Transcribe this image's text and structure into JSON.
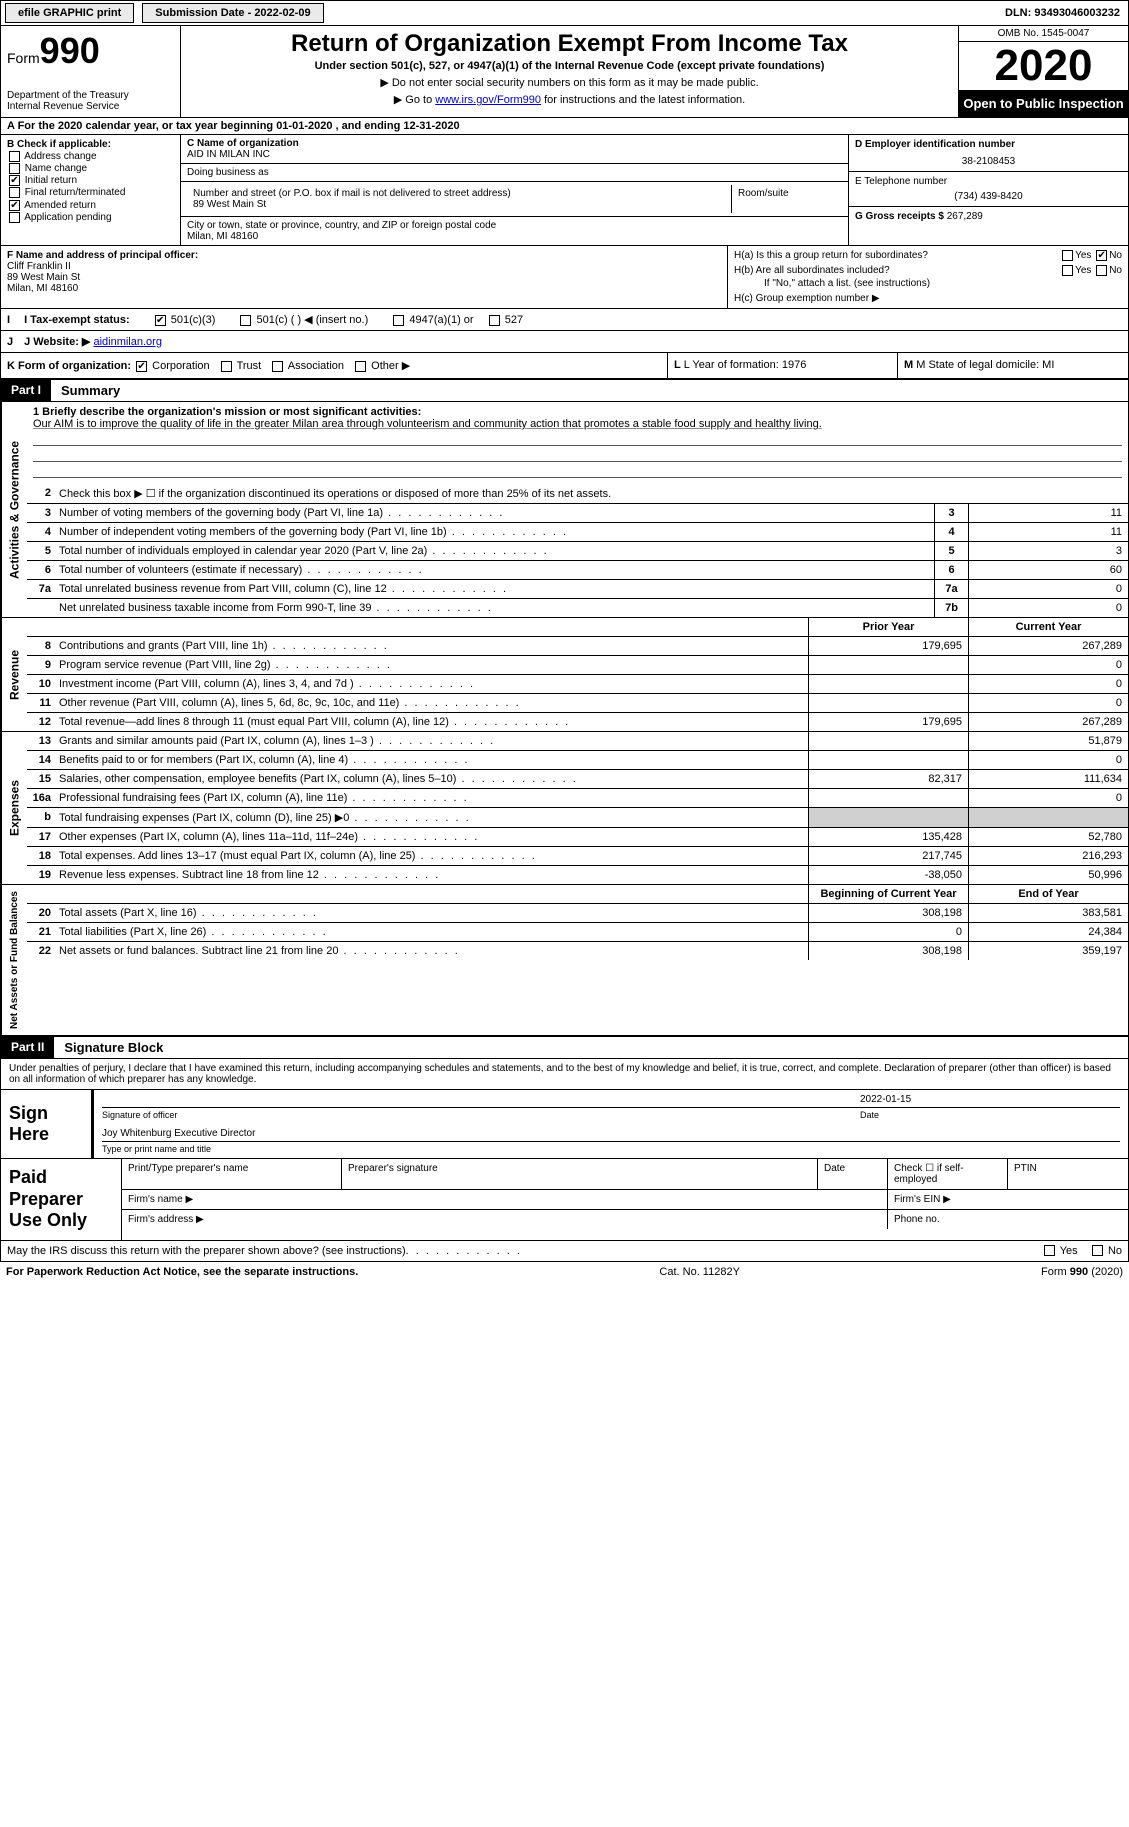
{
  "topbar": {
    "efile_label": "efile GRAPHIC print",
    "submission_label": "Submission Date - 2022-02-09",
    "dln_label": "DLN: 93493046003232"
  },
  "header": {
    "form_label": "Form",
    "form_number": "990",
    "dept": "Department of the Treasury",
    "irs": "Internal Revenue Service",
    "title": "Return of Organization Exempt From Income Tax",
    "subtitle": "Under section 501(c), 527, or 4947(a)(1) of the Internal Revenue Code (except private foundations)",
    "note1": "▶ Do not enter social security numbers on this form as it may be made public.",
    "note2_pre": "▶ Go to ",
    "note2_link": "www.irs.gov/Form990",
    "note2_post": " for instructions and the latest information.",
    "omb": "OMB No. 1545-0047",
    "year": "2020",
    "open": "Open to Public Inspection"
  },
  "period": "A For the 2020 calendar year, or tax year beginning 01-01-2020   , and ending 12-31-2020",
  "sectionB": {
    "label": "B Check if applicable:",
    "opts": {
      "address": "Address change",
      "name": "Name change",
      "initial": "Initial return",
      "final": "Final return/terminated",
      "amended": "Amended return",
      "pending": "Application pending"
    },
    "checked_initial": true,
    "checked_amended": true
  },
  "sectionC": {
    "label_name": "C Name of organization",
    "org_name": "AID IN MILAN INC",
    "dba_label": "Doing business as",
    "addr_label": "Number and street (or P.O. box if mail is not delivered to street address)",
    "room_label": "Room/suite",
    "addr": "89 West Main St",
    "city_label": "City or town, state or province, country, and ZIP or foreign postal code",
    "city": "Milan, MI  48160"
  },
  "sectionD": {
    "label": "D Employer identification number",
    "ein": "38-2108453",
    "tel_label": "E Telephone number",
    "tel": "(734) 439-8420",
    "gross_label": "G Gross receipts $",
    "gross": "267,289"
  },
  "sectionF": {
    "label": "F  Name and address of principal officer:",
    "name": "Cliff Franklin II",
    "addr1": "89 West Main St",
    "addr2": "Milan, MI  48160"
  },
  "sectionH": {
    "ha_label": "H(a)  Is this a group return for subordinates?",
    "hb_label": "H(b)  Are all subordinates included?",
    "hb_note": "If \"No,\" attach a list. (see instructions)",
    "hc_label": "H(c)  Group exemption number ▶",
    "yes": "Yes",
    "no": "No"
  },
  "rowI": {
    "label": "I  Tax-exempt status:",
    "opt1": "501(c)(3)",
    "opt2": "501(c) (  ) ◀ (insert no.)",
    "opt3": "4947(a)(1) or",
    "opt4": "527"
  },
  "rowJ": {
    "label": "J  Website: ▶",
    "value": "aidinmilan.org"
  },
  "rowK": {
    "label": "K Form of organization:",
    "corp": "Corporation",
    "trust": "Trust",
    "assoc": "Association",
    "other": "Other ▶"
  },
  "rowL": {
    "label": "L Year of formation: 1976"
  },
  "rowM": {
    "label": "M State of legal domicile: MI"
  },
  "part1": {
    "header": "Part I",
    "title": "Summary",
    "vlabels": {
      "gov": "Activities & Governance",
      "rev": "Revenue",
      "exp": "Expenses",
      "net": "Net Assets or Fund Balances"
    },
    "mission_label": "1  Briefly describe the organization's mission or most significant activities:",
    "mission": "Our AIM is to improve the quality of life in the greater Milan area through volunteerism and community action that promotes a stable food supply and healthy living.",
    "line2": "Check this box ▶ ☐ if the organization discontinued its operations or disposed of more than 25% of its net assets.",
    "lines_gov": [
      {
        "n": "3",
        "d": "Number of voting members of the governing body (Part VI, line 1a)",
        "box": "3",
        "v": "11"
      },
      {
        "n": "4",
        "d": "Number of independent voting members of the governing body (Part VI, line 1b)",
        "box": "4",
        "v": "11"
      },
      {
        "n": "5",
        "d": "Total number of individuals employed in calendar year 2020 (Part V, line 2a)",
        "box": "5",
        "v": "3"
      },
      {
        "n": "6",
        "d": "Total number of volunteers (estimate if necessary)",
        "box": "6",
        "v": "60"
      },
      {
        "n": "7a",
        "d": "Total unrelated business revenue from Part VIII, column (C), line 12",
        "box": "7a",
        "v": "0"
      },
      {
        "n": "",
        "d": "Net unrelated business taxable income from Form 990-T, line 39",
        "box": "7b",
        "v": "0"
      }
    ],
    "col_prior": "Prior Year",
    "col_current": "Current Year",
    "lines_rev": [
      {
        "n": "8",
        "d": "Contributions and grants (Part VIII, line 1h)",
        "p": "179,695",
        "c": "267,289"
      },
      {
        "n": "9",
        "d": "Program service revenue (Part VIII, line 2g)",
        "p": "",
        "c": "0"
      },
      {
        "n": "10",
        "d": "Investment income (Part VIII, column (A), lines 3, 4, and 7d )",
        "p": "",
        "c": "0"
      },
      {
        "n": "11",
        "d": "Other revenue (Part VIII, column (A), lines 5, 6d, 8c, 9c, 10c, and 11e)",
        "p": "",
        "c": "0"
      },
      {
        "n": "12",
        "d": "Total revenue—add lines 8 through 11 (must equal Part VIII, column (A), line 12)",
        "p": "179,695",
        "c": "267,289"
      }
    ],
    "lines_exp": [
      {
        "n": "13",
        "d": "Grants and similar amounts paid (Part IX, column (A), lines 1–3 )",
        "p": "",
        "c": "51,879"
      },
      {
        "n": "14",
        "d": "Benefits paid to or for members (Part IX, column (A), line 4)",
        "p": "",
        "c": "0"
      },
      {
        "n": "15",
        "d": "Salaries, other compensation, employee benefits (Part IX, column (A), lines 5–10)",
        "p": "82,317",
        "c": "111,634"
      },
      {
        "n": "16a",
        "d": "Professional fundraising fees (Part IX, column (A), line 11e)",
        "p": "",
        "c": "0"
      },
      {
        "n": "b",
        "d": "Total fundraising expenses (Part IX, column (D), line 25) ▶0",
        "p": "shade",
        "c": "shade"
      },
      {
        "n": "17",
        "d": "Other expenses (Part IX, column (A), lines 11a–11d, 11f–24e)",
        "p": "135,428",
        "c": "52,780"
      },
      {
        "n": "18",
        "d": "Total expenses. Add lines 13–17 (must equal Part IX, column (A), line 25)",
        "p": "217,745",
        "c": "216,293"
      },
      {
        "n": "19",
        "d": "Revenue less expenses. Subtract line 18 from line 12",
        "p": "-38,050",
        "c": "50,996"
      }
    ],
    "col_begin": "Beginning of Current Year",
    "col_end": "End of Year",
    "lines_net": [
      {
        "n": "20",
        "d": "Total assets (Part X, line 16)",
        "p": "308,198",
        "c": "383,581"
      },
      {
        "n": "21",
        "d": "Total liabilities (Part X, line 26)",
        "p": "0",
        "c": "24,384"
      },
      {
        "n": "22",
        "d": "Net assets or fund balances. Subtract line 21 from line 20",
        "p": "308,198",
        "c": "359,197"
      }
    ]
  },
  "part2": {
    "header": "Part II",
    "title": "Signature Block",
    "decl": "Under penalties of perjury, I declare that I have examined this return, including accompanying schedules and statements, and to the best of my knowledge and belief, it is true, correct, and complete. Declaration of preparer (other than officer) is based on all information of which preparer has any knowledge.",
    "sign_here": "Sign Here",
    "sig_officer": "Signature of officer",
    "sig_date": "Date",
    "sig_date_val": "2022-01-15",
    "sig_name": "Joy Whitenburg Executive Director",
    "sig_name_label": "Type or print name and title",
    "paid_label": "Paid Preparer Use Only",
    "prep_name": "Print/Type preparer's name",
    "prep_sig": "Preparer's signature",
    "prep_date": "Date",
    "prep_check": "Check ☐ if self-employed",
    "ptin": "PTIN",
    "firm_name": "Firm's name  ▶",
    "firm_ein": "Firm's EIN ▶",
    "firm_addr": "Firm's address ▶",
    "phone": "Phone no."
  },
  "footer": {
    "discuss": "May the IRS discuss this return with the preparer shown above? (see instructions)",
    "yes": "Yes",
    "no": "No",
    "paperwork": "For Paperwork Reduction Act Notice, see the separate instructions.",
    "cat": "Cat. No. 11282Y",
    "form": "Form 990 (2020)"
  }
}
